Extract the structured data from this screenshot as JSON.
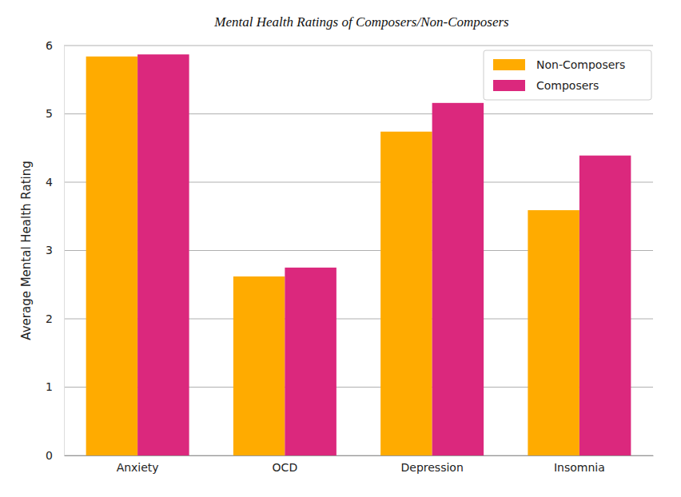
{
  "chart_data": {
    "type": "bar",
    "title": "Mental Health Ratings of Composers/Non-Composers",
    "y_label": "Average Mental Health Rating",
    "categories": [
      "Anxiety",
      "OCD",
      "Depression",
      "Insomnia"
    ],
    "series": [
      {
        "name": "Non-Composers",
        "color": "#ffab00",
        "values": [
          5.84,
          2.62,
          4.74,
          3.59
        ]
      },
      {
        "name": "Composers",
        "color": "#db287d",
        "values": [
          5.87,
          2.75,
          5.16,
          4.39
        ]
      }
    ],
    "ylim": [
      0,
      6
    ],
    "yticks": [
      0,
      1,
      2,
      3,
      4,
      5,
      6
    ],
    "grid": true,
    "legend": "upper right"
  }
}
